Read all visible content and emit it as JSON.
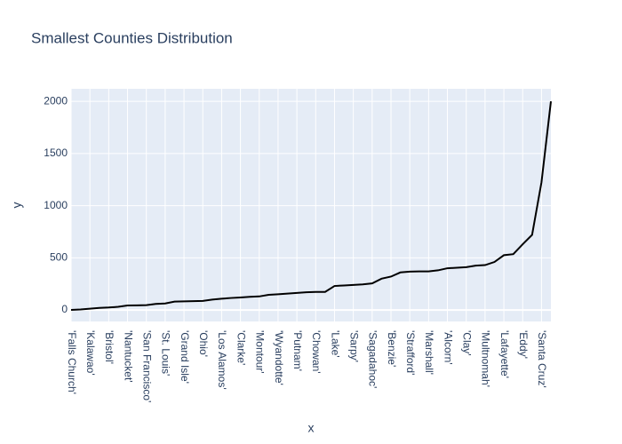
{
  "chart_data": {
    "type": "line",
    "title": "Smallest Counties Distribution",
    "x_label": "x",
    "y_label": "y",
    "categories": [
      "'Falls Church'",
      null,
      "'Kalawao'",
      null,
      "'Bristol'",
      null,
      "'Nantucket'",
      null,
      "'San Francisco'",
      null,
      "'St. Louis'",
      null,
      "'Grand Isle'",
      null,
      "'Ohio'",
      null,
      "'Los Alamos'",
      null,
      "'Clarke'",
      null,
      "'Montour'",
      null,
      "'Wyandotte'",
      null,
      "'Putnam'",
      null,
      "'Chowan'",
      null,
      "'Lake'",
      null,
      "'Sarpy'",
      null,
      "'Sagadahoc'",
      null,
      "'Benzie'",
      null,
      "'Strafford'",
      null,
      "'Marshall'",
      null,
      "'Alcorn'",
      null,
      "'Clay'",
      null,
      "'Multnomah'",
      null,
      "'Lafayette'",
      null,
      "'Eddy'",
      null,
      "'Santa Cruz'",
      null
    ],
    "values": [
      1,
      5,
      12,
      20,
      24,
      30,
      43,
      44,
      46,
      58,
      62,
      80,
      83,
      85,
      87,
      100,
      108,
      115,
      120,
      126,
      130,
      145,
      151,
      157,
      163,
      170,
      173,
      173,
      230,
      235,
      240,
      245,
      255,
      300,
      320,
      360,
      368,
      370,
      370,
      380,
      400,
      405,
      410,
      425,
      430,
      460,
      525,
      535,
      630,
      720,
      1225,
      2000
    ],
    "color": "#000000",
    "ylim": [
      -110,
      2120
    ],
    "yticks": [
      0,
      500,
      1000,
      1500,
      2000
    ],
    "grid": true
  }
}
